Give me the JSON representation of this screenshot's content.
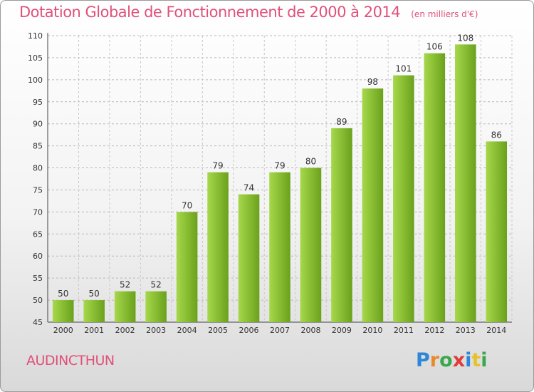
{
  "header": {
    "title": "Dotation Globale de Fonctionnement de 2000 à 2014",
    "unit_note": "(en milliers d'€)"
  },
  "commune": "AUDINCTHUN",
  "logo": {
    "letters": [
      "P",
      "r",
      "o",
      "x",
      "i",
      "t",
      "i"
    ],
    "colors": [
      "#2e86d8",
      "#e8892a",
      "#3aa84a",
      "#e03a3a",
      "#2e86d8",
      "#e8c12a",
      "#3aa84a"
    ]
  },
  "colors": {
    "bar_light": "#a6d84a",
    "bar_dark": "#6aa11c",
    "axis_text": "#333333",
    "title": "#e0507a"
  },
  "chart_data": {
    "type": "bar",
    "categories": [
      "2000",
      "2001",
      "2002",
      "2003",
      "2004",
      "2005",
      "2006",
      "2007",
      "2008",
      "2009",
      "2010",
      "2011",
      "2012",
      "2013",
      "2014"
    ],
    "values": [
      50,
      50,
      52,
      52,
      70,
      79,
      74,
      79,
      80,
      89,
      98,
      101,
      106,
      108,
      86
    ],
    "title": "Dotation Globale de Fonctionnement de 2000 à 2014",
    "subtitle": "(en milliers d'€)",
    "ylim": [
      45,
      110
    ],
    "yticks": [
      45,
      50,
      55,
      60,
      65,
      70,
      75,
      80,
      85,
      90,
      95,
      100,
      105,
      110
    ],
    "grid": true,
    "data_labels": true
  }
}
